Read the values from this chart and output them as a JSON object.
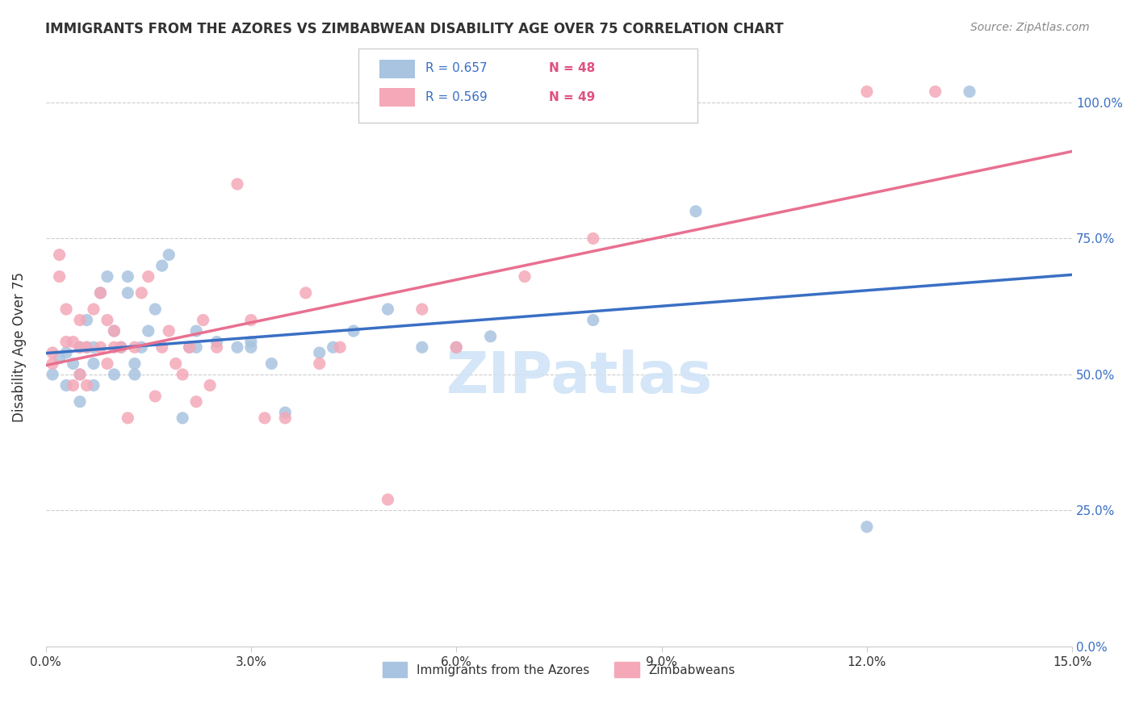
{
  "title": "IMMIGRANTS FROM THE AZORES VS ZIMBABWEAN DISABILITY AGE OVER 75 CORRELATION CHART",
  "source": "Source: ZipAtlas.com",
  "xlabel_bottom": "",
  "ylabel": "Disability Age Over 75",
  "x_min": 0.0,
  "x_max": 0.15,
  "y_min": 0.0,
  "y_max": 1.1,
  "x_ticks": [
    0.0,
    0.03,
    0.06,
    0.09,
    0.12,
    0.15
  ],
  "x_tick_labels": [
    "0.0%",
    "3.0%",
    "6.0%",
    "9.0%",
    "12.0%",
    "15.0%"
  ],
  "y_ticks": [
    0.0,
    0.25,
    0.5,
    0.75,
    1.0
  ],
  "y_tick_labels": [
    "0.0%",
    "25.0%",
    "50.0%",
    "75.0%",
    "100.0%"
  ],
  "legend_items": [
    {
      "label": "R = 0.657   N = 48",
      "color": "#a8c4e0"
    },
    {
      "label": "R = 0.569   N = 49",
      "color": "#f4a8b8"
    }
  ],
  "legend_r_color": "#5b8dd9",
  "legend_n_color": "#e05080",
  "blue_scatter_color": "#a8c4e0",
  "pink_scatter_color": "#f4a8b8",
  "blue_line_color": "#3a6fc4",
  "pink_line_color": "#e87090",
  "watermark": "ZIPatlas",
  "watermark_color": "#d0e4f7",
  "series1_label": "Immigrants from the Azores",
  "series2_label": "Zimbabweans",
  "blue_x": [
    0.001,
    0.002,
    0.003,
    0.003,
    0.004,
    0.005,
    0.005,
    0.005,
    0.006,
    0.006,
    0.007,
    0.007,
    0.007,
    0.008,
    0.009,
    0.01,
    0.01,
    0.011,
    0.012,
    0.012,
    0.013,
    0.013,
    0.014,
    0.015,
    0.016,
    0.017,
    0.018,
    0.02,
    0.021,
    0.022,
    0.022,
    0.025,
    0.028,
    0.03,
    0.03,
    0.033,
    0.035,
    0.04,
    0.042,
    0.045,
    0.05,
    0.055,
    0.06,
    0.065,
    0.08,
    0.095,
    0.12,
    0.135
  ],
  "blue_y": [
    0.5,
    0.53,
    0.54,
    0.48,
    0.52,
    0.55,
    0.5,
    0.45,
    0.6,
    0.55,
    0.48,
    0.52,
    0.55,
    0.65,
    0.68,
    0.5,
    0.58,
    0.55,
    0.65,
    0.68,
    0.52,
    0.5,
    0.55,
    0.58,
    0.62,
    0.7,
    0.72,
    0.42,
    0.55,
    0.58,
    0.55,
    0.56,
    0.55,
    0.55,
    0.56,
    0.52,
    0.43,
    0.54,
    0.55,
    0.58,
    0.62,
    0.55,
    0.55,
    0.57,
    0.6,
    0.8,
    0.22,
    1.02
  ],
  "pink_x": [
    0.001,
    0.001,
    0.002,
    0.002,
    0.003,
    0.003,
    0.004,
    0.004,
    0.005,
    0.005,
    0.005,
    0.006,
    0.006,
    0.007,
    0.008,
    0.008,
    0.009,
    0.009,
    0.01,
    0.01,
    0.011,
    0.012,
    0.013,
    0.014,
    0.015,
    0.016,
    0.017,
    0.018,
    0.019,
    0.02,
    0.021,
    0.022,
    0.023,
    0.024,
    0.025,
    0.028,
    0.03,
    0.032,
    0.035,
    0.038,
    0.04,
    0.043,
    0.05,
    0.055,
    0.06,
    0.07,
    0.08,
    0.12,
    0.13
  ],
  "pink_y": [
    0.52,
    0.54,
    0.72,
    0.68,
    0.56,
    0.62,
    0.56,
    0.48,
    0.6,
    0.55,
    0.5,
    0.55,
    0.48,
    0.62,
    0.65,
    0.55,
    0.6,
    0.52,
    0.58,
    0.55,
    0.55,
    0.42,
    0.55,
    0.65,
    0.68,
    0.46,
    0.55,
    0.58,
    0.52,
    0.5,
    0.55,
    0.45,
    0.6,
    0.48,
    0.55,
    0.85,
    0.6,
    0.42,
    0.42,
    0.65,
    0.52,
    0.55,
    0.27,
    0.62,
    0.55,
    0.68,
    0.75,
    1.02,
    1.02
  ]
}
